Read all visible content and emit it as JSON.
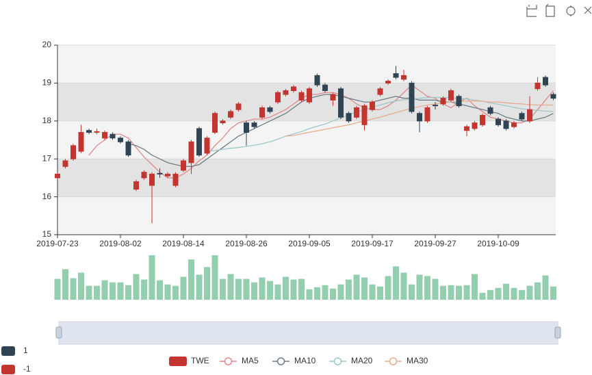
{
  "chart_data": {
    "type": "candlestick",
    "categories": [
      "2019-07-23",
      null,
      null,
      null,
      null,
      null,
      null,
      null,
      "2019-08-02",
      null,
      null,
      null,
      null,
      null,
      null,
      null,
      "2019-08-14",
      null,
      null,
      null,
      null,
      null,
      null,
      null,
      "2019-08-26",
      null,
      null,
      null,
      null,
      null,
      null,
      null,
      "2019-09-05",
      null,
      null,
      null,
      null,
      null,
      null,
      null,
      "2019-09-17",
      null,
      null,
      null,
      null,
      null,
      null,
      null,
      "2019-09-27",
      null,
      null,
      null,
      null,
      null,
      null,
      null,
      "2019-10-09",
      null,
      null,
      null,
      null,
      null,
      null,
      null
    ],
    "ylim": [
      15,
      20
    ],
    "yticks": [
      15,
      16,
      17,
      18,
      19,
      20
    ],
    "grid": true,
    "split_area_colors": [
      "#f4f4f4",
      "#e3e3e3"
    ],
    "series": [
      {
        "name": "TWE",
        "type": "candlestick",
        "color": "#c23531",
        "color_down": "#2f4554",
        "values": [
          [
            16.5,
            16.6,
            16.45,
            16.65
          ],
          [
            16.8,
            16.95,
            16.75,
            17.0
          ],
          [
            17.0,
            17.35,
            16.95,
            17.4
          ],
          [
            17.2,
            17.7,
            17.15,
            17.9
          ],
          [
            17.75,
            17.7,
            17.65,
            17.8
          ],
          [
            17.7,
            17.72,
            17.65,
            17.8
          ],
          [
            17.55,
            17.7,
            17.5,
            17.75
          ],
          [
            17.65,
            17.55,
            17.5,
            17.7
          ],
          [
            17.55,
            17.45,
            17.4,
            17.6
          ],
          [
            17.45,
            17.1,
            17.05,
            17.5
          ],
          [
            16.2,
            16.4,
            16.15,
            16.45
          ],
          [
            16.5,
            16.65,
            16.45,
            16.7
          ],
          [
            16.3,
            16.6,
            15.3,
            16.65
          ],
          [
            16.62,
            16.6,
            16.5,
            16.75
          ],
          [
            16.55,
            16.6,
            16.5,
            16.65
          ],
          [
            16.3,
            16.6,
            16.25,
            16.65
          ],
          [
            16.7,
            16.95,
            16.65,
            17.0
          ],
          [
            16.9,
            17.45,
            16.6,
            17.5
          ],
          [
            17.8,
            17.1,
            17.05,
            17.85
          ],
          [
            17.15,
            17.55,
            17.1,
            17.6
          ],
          [
            17.7,
            18.2,
            17.65,
            18.25
          ],
          [
            17.95,
            18.0,
            17.9,
            18.05
          ],
          [
            18.1,
            18.25,
            18.05,
            18.3
          ],
          [
            18.3,
            18.45,
            18.25,
            18.5
          ],
          [
            17.95,
            17.7,
            17.35,
            18.0
          ],
          [
            17.95,
            17.85,
            17.8,
            18.0
          ],
          [
            18.1,
            18.35,
            18.05,
            18.4
          ],
          [
            18.35,
            18.25,
            18.2,
            18.4
          ],
          [
            18.5,
            18.75,
            18.45,
            18.8
          ],
          [
            18.7,
            18.8,
            18.65,
            18.85
          ],
          [
            18.8,
            18.9,
            18.75,
            18.95
          ],
          [
            18.55,
            18.75,
            18.5,
            18.8
          ],
          [
            18.5,
            18.85,
            18.45,
            18.9
          ],
          [
            19.2,
            18.95,
            18.9,
            19.25
          ],
          [
            18.95,
            18.8,
            18.75,
            19.0
          ],
          [
            18.55,
            18.7,
            18.4,
            18.75
          ],
          [
            18.85,
            18.1,
            18.05,
            18.9
          ],
          [
            18.2,
            18.0,
            17.95,
            18.25
          ],
          [
            18.1,
            18.35,
            18.05,
            18.4
          ],
          [
            17.9,
            18.4,
            17.75,
            18.45
          ],
          [
            18.3,
            18.5,
            18.25,
            18.55
          ],
          [
            18.7,
            18.85,
            18.65,
            18.9
          ],
          [
            19.0,
            19.05,
            18.95,
            19.1
          ],
          [
            19.25,
            19.15,
            19.1,
            19.45
          ],
          [
            19.1,
            19.2,
            19.05,
            19.35
          ],
          [
            19.0,
            18.25,
            18.2,
            19.05
          ],
          [
            18.2,
            18.0,
            17.7,
            18.25
          ],
          [
            18.0,
            18.35,
            17.95,
            18.4
          ],
          [
            18.42,
            18.4,
            18.3,
            18.5
          ],
          [
            18.45,
            18.6,
            18.4,
            18.65
          ],
          [
            18.55,
            18.8,
            18.5,
            18.85
          ],
          [
            18.65,
            18.4,
            18.35,
            18.7
          ],
          [
            17.75,
            17.85,
            17.6,
            17.9
          ],
          [
            17.8,
            17.95,
            17.75,
            18.0
          ],
          [
            17.9,
            18.15,
            17.85,
            18.2
          ],
          [
            18.35,
            18.2,
            18.15,
            18.4
          ],
          [
            18.05,
            17.9,
            17.85,
            18.1
          ],
          [
            18.0,
            17.8,
            17.75,
            18.05
          ],
          [
            17.85,
            17.95,
            17.8,
            18.0
          ],
          [
            18.2,
            18.05,
            18.0,
            18.25
          ],
          [
            18.0,
            18.3,
            17.95,
            18.65
          ],
          [
            18.85,
            19.0,
            18.8,
            19.15
          ],
          [
            19.15,
            18.95,
            18.9,
            19.2
          ],
          [
            18.7,
            18.6,
            18.55,
            18.75
          ]
        ]
      },
      {
        "name": "MA5",
        "type": "line",
        "color": "#e0898a",
        "values": [
          null,
          null,
          null,
          null,
          17.1,
          17.35,
          17.5,
          17.65,
          17.65,
          17.55,
          17.3,
          17.05,
          16.85,
          16.65,
          16.5,
          16.5,
          16.6,
          16.75,
          16.95,
          17.1,
          17.35,
          17.55,
          17.8,
          17.95,
          18.0,
          18.05,
          18.05,
          18.1,
          18.2,
          18.3,
          18.45,
          18.6,
          18.7,
          18.7,
          18.75,
          18.75,
          18.7,
          18.6,
          18.45,
          18.35,
          18.3,
          18.3,
          18.4,
          18.55,
          18.75,
          18.95,
          18.8,
          18.65,
          18.6,
          18.45,
          18.35,
          18.5,
          18.6,
          18.4,
          18.25,
          18.1,
          18.05,
          18.0,
          17.95,
          17.95,
          18.05,
          18.3,
          18.55,
          18.8
        ]
      },
      {
        "name": "MA10",
        "type": "line",
        "color": "#6e7c85",
        "values": [
          null,
          null,
          null,
          null,
          null,
          null,
          null,
          null,
          null,
          17.4,
          17.35,
          17.25,
          17.1,
          17.0,
          16.9,
          16.85,
          16.8,
          16.8,
          16.85,
          17.0,
          17.15,
          17.3,
          17.45,
          17.6,
          17.7,
          17.8,
          17.9,
          18.0,
          18.1,
          18.2,
          18.35,
          18.5,
          18.6,
          18.65,
          18.7,
          18.7,
          18.65,
          18.6,
          18.55,
          18.5,
          18.5,
          18.55,
          18.6,
          18.65,
          18.6,
          18.6,
          18.55,
          18.55,
          18.55,
          18.5,
          18.5,
          18.45,
          18.4,
          18.35,
          18.3,
          18.25,
          18.2,
          18.1,
          18.05,
          18.0,
          18.0,
          18.05,
          18.1,
          18.2
        ]
      },
      {
        "name": "MA20",
        "type": "line",
        "color": "#9fc6cb",
        "values": [
          null,
          null,
          null,
          null,
          null,
          null,
          null,
          null,
          null,
          null,
          null,
          null,
          null,
          null,
          null,
          null,
          null,
          null,
          null,
          17.2,
          17.22,
          17.25,
          17.28,
          17.3,
          17.33,
          17.36,
          17.4,
          17.45,
          17.52,
          17.6,
          17.66,
          17.72,
          17.8,
          17.86,
          17.92,
          18.0,
          18.08,
          18.16,
          18.24,
          18.3,
          18.36,
          18.42,
          18.48,
          18.53,
          18.56,
          18.58,
          18.6,
          18.62,
          18.62,
          18.62,
          18.61,
          18.6,
          18.58,
          18.55,
          18.52,
          18.48,
          18.44,
          18.4,
          18.36,
          18.32,
          18.3,
          18.28,
          18.26,
          18.25
        ]
      },
      {
        "name": "MA30",
        "type": "line",
        "color": "#e6ab90",
        "values": [
          null,
          null,
          null,
          null,
          null,
          null,
          null,
          null,
          null,
          null,
          null,
          null,
          null,
          null,
          null,
          null,
          null,
          null,
          null,
          null,
          null,
          null,
          null,
          null,
          null,
          null,
          null,
          null,
          null,
          17.6,
          17.62,
          17.66,
          17.7,
          17.74,
          17.78,
          17.82,
          17.86,
          17.9,
          17.95,
          18.0,
          18.05,
          18.1,
          18.16,
          18.22,
          18.28,
          18.33,
          18.38,
          18.42,
          18.45,
          18.48,
          18.5,
          18.52,
          18.52,
          18.53,
          18.52,
          18.5,
          18.5,
          18.48,
          18.46,
          18.45,
          18.43,
          18.42,
          18.42,
          18.42
        ]
      }
    ],
    "volume": {
      "color": "#93cfae",
      "ylim": [
        0,
        65
      ],
      "values": [
        30,
        44,
        31,
        39,
        20,
        20,
        28,
        25,
        25,
        21,
        37,
        29,
        64,
        28,
        22,
        20,
        33,
        58,
        36,
        47,
        64,
        30,
        37,
        30,
        30,
        25,
        32,
        27,
        22,
        33,
        29,
        30,
        15,
        18,
        21,
        16,
        22,
        29,
        36,
        32,
        22,
        19,
        34,
        48,
        39,
        22,
        36,
        34,
        30,
        20,
        21,
        20,
        21,
        37,
        10,
        14,
        17,
        23,
        17,
        14,
        20,
        25,
        35,
        19
      ]
    },
    "visual_map": [
      {
        "label": "1",
        "color": "#2f4554"
      },
      {
        "label": "-1",
        "color": "#c23531"
      }
    ]
  }
}
